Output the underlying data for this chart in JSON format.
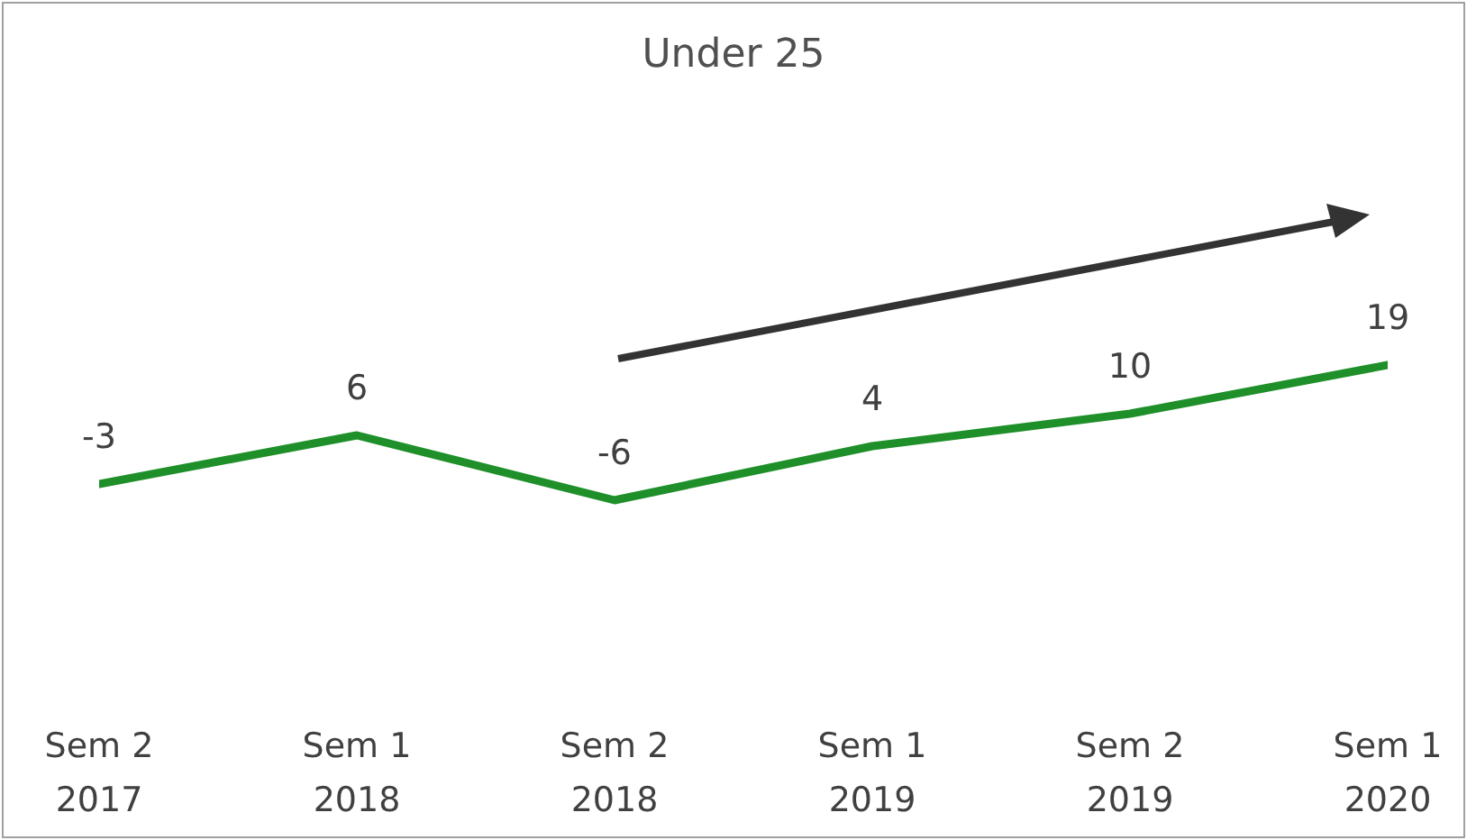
{
  "chart_data": {
    "type": "line",
    "title": "Under 25",
    "categories": [
      "Sem 2 2017",
      "Sem 1 2018",
      "Sem 2 2018",
      "Sem 1 2019",
      "Sem 2 2019",
      "Sem 1 2020"
    ],
    "series": [
      {
        "color": "#1f8f2a",
        "values": [
          -3,
          6,
          -6,
          4,
          10,
          19
        ]
      }
    ],
    "data_labels": true,
    "marker": "none",
    "line_style": "solid",
    "grid": false,
    "legend": false
  }
}
